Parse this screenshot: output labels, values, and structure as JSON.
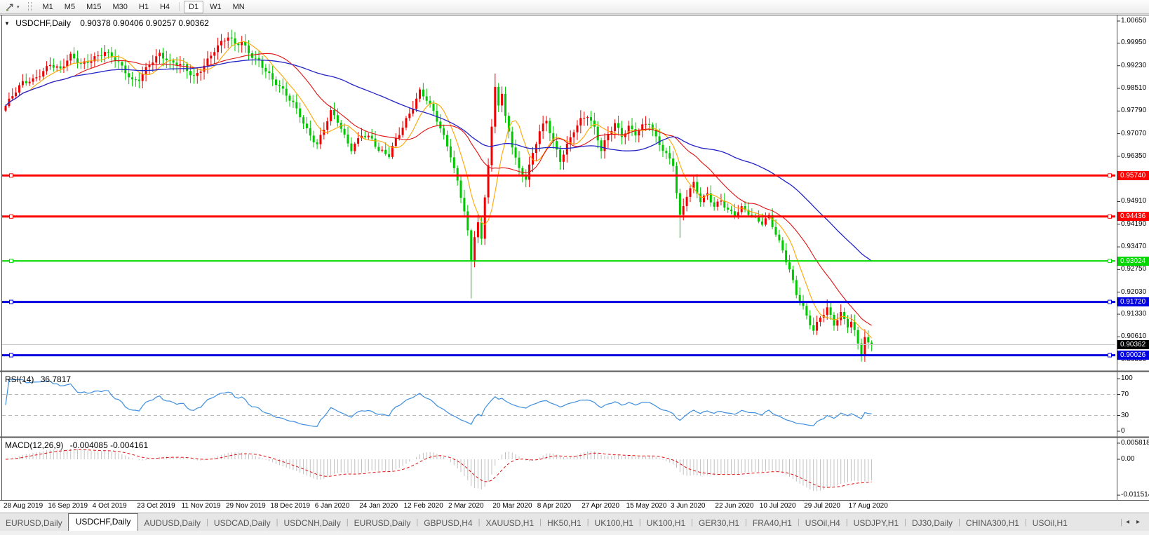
{
  "toolbar": {
    "timeframes": [
      "M1",
      "M5",
      "M15",
      "M30",
      "H1",
      "H4",
      "D1",
      "W1",
      "MN"
    ],
    "active_timeframe": "D1",
    "tool_icon": "pointer-tool",
    "dropdown_caret": "▾"
  },
  "chart": {
    "collapse_caret": "▼",
    "title_symbol": "USDCHF,Daily",
    "title_ohlc": "0.90378 0.90406 0.90257 0.90362"
  },
  "chart_data": {
    "type": "candlestick",
    "symbol": "USDCHF",
    "timeframe": "Daily",
    "current_bar": {
      "open": 0.90378,
      "high": 0.90406,
      "low": 0.90257,
      "close": 0.90362
    },
    "bars_total": 254,
    "candle_up_color": "#ee0000",
    "candle_down_color": "#00c800",
    "close_anchors": [
      [
        0,
        0.9795
      ],
      [
        2,
        0.9822
      ],
      [
        5,
        0.9862
      ],
      [
        8,
        0.9878
      ],
      [
        10,
        0.9902
      ],
      [
        13,
        0.9935
      ],
      [
        16,
        0.9908
      ],
      [
        19,
        0.9946
      ],
      [
        22,
        0.9924
      ],
      [
        26,
        0.9956
      ],
      [
        29,
        0.9972
      ],
      [
        32,
        0.9938
      ],
      [
        35,
        0.9896
      ],
      [
        37,
        0.987
      ],
      [
        39,
        0.9884
      ],
      [
        42,
        0.9938
      ],
      [
        45,
        0.9962
      ],
      [
        48,
        0.9926
      ],
      [
        52,
        0.9918
      ],
      [
        55,
        0.9891
      ],
      [
        58,
        0.9932
      ],
      [
        61,
        0.9972
      ],
      [
        63,
        0.999
      ],
      [
        65,
        1.0008
      ],
      [
        67,
        0.9986
      ],
      [
        69,
        1.0
      ],
      [
        71,
        0.9972
      ],
      [
        74,
        0.9942
      ],
      [
        76,
        0.9908
      ],
      [
        78,
        0.9872
      ],
      [
        81,
        0.9836
      ],
      [
        84,
        0.9804
      ],
      [
        86,
        0.9772
      ],
      [
        88,
        0.9726
      ],
      [
        90,
        0.969
      ],
      [
        91,
        0.9672
      ],
      [
        93,
        0.9718
      ],
      [
        95,
        0.9768
      ],
      [
        97,
        0.9742
      ],
      [
        99,
        0.9698
      ],
      [
        101,
        0.9664
      ],
      [
        104,
        0.9712
      ],
      [
        107,
        0.9688
      ],
      [
        109,
        0.9645
      ],
      [
        112,
        0.9632
      ],
      [
        114,
        0.9688
      ],
      [
        117,
        0.9758
      ],
      [
        119,
        0.98
      ],
      [
        121,
        0.9844
      ],
      [
        123,
        0.9812
      ],
      [
        125,
        0.9768
      ],
      [
        127,
        0.9718
      ],
      [
        129,
        0.9666
      ],
      [
        130,
        0.964
      ],
      [
        132,
        0.956
      ],
      [
        134,
        0.9472
      ],
      [
        135,
        0.94
      ],
      [
        136,
        0.9302
      ],
      [
        137,
        0.9384
      ],
      [
        138,
        0.9422
      ],
      [
        139,
        0.936
      ],
      [
        140,
        0.9498
      ],
      [
        141,
        0.9604
      ],
      [
        142,
        0.9718
      ],
      [
        143,
        0.9846
      ],
      [
        144,
        0.98
      ],
      [
        145,
        0.9838
      ],
      [
        146,
        0.9762
      ],
      [
        148,
        0.9678
      ],
      [
        150,
        0.9598
      ],
      [
        152,
        0.9566
      ],
      [
        154,
        0.9636
      ],
      [
        156,
        0.9708
      ],
      [
        158,
        0.9742
      ],
      [
        160,
        0.9682
      ],
      [
        162,
        0.9628
      ],
      [
        164,
        0.9678
      ],
      [
        166,
        0.9722
      ],
      [
        168,
        0.9748
      ],
      [
        170,
        0.9758
      ],
      [
        172,
        0.9716
      ],
      [
        174,
        0.9652
      ],
      [
        176,
        0.9708
      ],
      [
        178,
        0.9748
      ],
      [
        180,
        0.9706
      ],
      [
        182,
        0.973
      ],
      [
        184,
        0.9702
      ],
      [
        186,
        0.9722
      ],
      [
        188,
        0.9736
      ],
      [
        190,
        0.9692
      ],
      [
        193,
        0.9648
      ],
      [
        195,
        0.9618
      ],
      [
        196,
        0.9525
      ],
      [
        197,
        0.9445
      ],
      [
        199,
        0.9508
      ],
      [
        201,
        0.954
      ],
      [
        203,
        0.9486
      ],
      [
        205,
        0.9514
      ],
      [
        207,
        0.948
      ],
      [
        209,
        0.9504
      ],
      [
        211,
        0.9468
      ],
      [
        213,
        0.945
      ],
      [
        215,
        0.9464
      ],
      [
        218,
        0.9438
      ],
      [
        221,
        0.9424
      ],
      [
        223,
        0.9452
      ],
      [
        225,
        0.9396
      ],
      [
        227,
        0.934
      ],
      [
        229,
        0.927
      ],
      [
        231,
        0.919
      ],
      [
        233,
        0.9146
      ],
      [
        234,
        0.912
      ],
      [
        236,
        0.9082
      ],
      [
        238,
        0.913
      ],
      [
        240,
        0.916
      ],
      [
        242,
        0.9106
      ],
      [
        244,
        0.9132
      ],
      [
        246,
        0.909
      ],
      [
        247,
        0.91
      ],
      [
        249,
        0.9036
      ],
      [
        250,
        0.9004
      ],
      [
        251,
        0.9056
      ],
      [
        252,
        0.9042
      ],
      [
        253,
        0.90362
      ]
    ],
    "wick_overrides": {
      "65": {
        "high": 1.0023
      },
      "136": {
        "low": 0.9183
      },
      "143": {
        "high": 0.9898
      },
      "197": {
        "low": 0.9376
      },
      "250": {
        "low": 0.8998
      }
    },
    "moving_averages": [
      {
        "name": "fast",
        "period": 8,
        "color": "#ffa500"
      },
      {
        "name": "medium",
        "period": 21,
        "color": "#e01010"
      },
      {
        "name": "slow",
        "period": 55,
        "color": "#2323c8"
      }
    ],
    "horizontal_levels": [
      {
        "price": 0.9574,
        "label": "0.95740",
        "color": "#ff0000",
        "width": 3
      },
      {
        "price": 0.94436,
        "label": "0.94436",
        "color": "#ff0000",
        "width": 3
      },
      {
        "price": 0.93024,
        "label": "0.93024",
        "color": "#00d800",
        "width": 2
      },
      {
        "price": 0.9172,
        "label": "0.91720",
        "color": "#0000e0",
        "width": 3
      },
      {
        "price": 0.90026,
        "label": "0.90026",
        "color": "#0000e0",
        "width": 3
      }
    ],
    "current_price": {
      "price": 0.90362,
      "label": "0.90362",
      "line_color": "#c8c8c8",
      "tag_bg": "#000000"
    },
    "price_ticks": [
      "1.00650",
      "0.99950",
      "0.99230",
      "0.98510",
      "0.97790",
      "0.97070",
      "0.96350",
      "0.95630",
      "0.94910",
      "0.94190",
      "0.93470",
      "0.92750",
      "0.92030",
      "0.91330",
      "0.90610",
      "0.89890"
    ],
    "date_labels": [
      "28 Aug 2019",
      "16 Sep 2019",
      "4 Oct 2019",
      "23 Oct 2019",
      "11 Nov 2019",
      "29 Nov 2019",
      "18 Dec 2019",
      "6 Jan 2020",
      "24 Jan 2020",
      "12 Feb 2020",
      "2 Mar 2020",
      "20 Mar 2020",
      "8 Apr 2020",
      "27 Apr 2020",
      "15 May 2020",
      "3 Jun 2020",
      "22 Jun 2020",
      "10 Jul 2020",
      "29 Jul 2020",
      "17 Aug 2020"
    ],
    "rsi": {
      "label": "RSI(14)",
      "value": "36.7817",
      "period": 14,
      "color": "#3e8ede",
      "scale": [
        100,
        70,
        30,
        0
      ],
      "level_lines": [
        70,
        30
      ]
    },
    "macd": {
      "label": "MACD(12,26,9)",
      "values": "-0.004085 -0.004161",
      "fast": 12,
      "slow": 26,
      "signal": 9,
      "hist_color": "#c0c0c0",
      "signal_color": "#e01010",
      "scale": [
        0.005818,
        0,
        -0.011514
      ],
      "scale_labels": [
        "0.005818",
        "0.00",
        "-0.011514"
      ]
    }
  },
  "tabs": {
    "items": [
      "EURUSD,Daily",
      "USDCHF,Daily",
      "AUDUSD,Daily",
      "USDCAD,Daily",
      "USDCNH,Daily",
      "EURUSD,Daily",
      "GBPUSD,H4",
      "XAUUSD,H1",
      "HK50,H1",
      "UK100,H1",
      "UK100,H1",
      "GER30,H1",
      "FRA40,H1",
      "USOil,H4",
      "USDJPY,H1",
      "DJ30,Daily",
      "CHINA300,H1",
      "USOil,H1"
    ],
    "active_index": 1,
    "scroll_left": "◂",
    "scroll_right": "▸"
  }
}
